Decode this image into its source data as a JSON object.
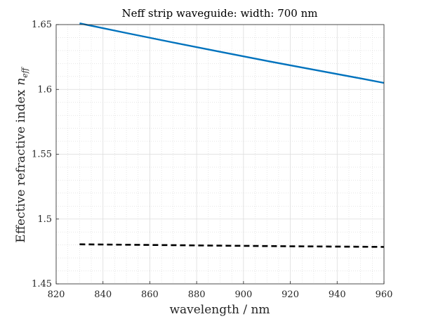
{
  "chart_data": {
    "type": "line",
    "title": "Neff strip waveguide: width: 700 nm",
    "xlabel": "wavelength / nm",
    "ylabel": "Effective refractive index",
    "ylabel_symbol": "n",
    "ylabel_subscript": "eff",
    "xlim": [
      820,
      960
    ],
    "ylim": [
      1.45,
      1.65
    ],
    "xticks": [
      "820",
      "840",
      "860",
      "880",
      "900",
      "920",
      "940",
      "960"
    ],
    "yticks": [
      "1.45",
      "1.5",
      "1.55",
      "1.6",
      "1.65"
    ],
    "grid": true,
    "minor_grid": true,
    "legend": false,
    "series": [
      {
        "style": "solid",
        "color": "#0072BD",
        "x": [
          830,
          850,
          870,
          890,
          910,
          930,
          950,
          960
        ],
        "y": [
          1.651,
          1.6435,
          1.6362,
          1.629,
          1.622,
          1.6152,
          1.6085,
          1.605
        ]
      },
      {
        "style": "dashed",
        "color": "#000000",
        "x": [
          830,
          860,
          890,
          920,
          960
        ],
        "y": [
          1.4805,
          1.48,
          1.4795,
          1.479,
          1.4785
        ]
      }
    ]
  }
}
